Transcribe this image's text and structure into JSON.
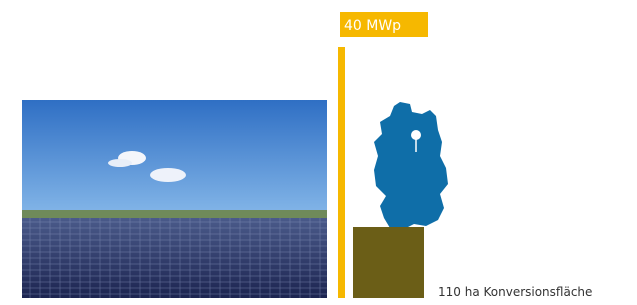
{
  "badge": {
    "label": "40 MWp"
  },
  "caption": "110 ha Konversionsfläche"
}
